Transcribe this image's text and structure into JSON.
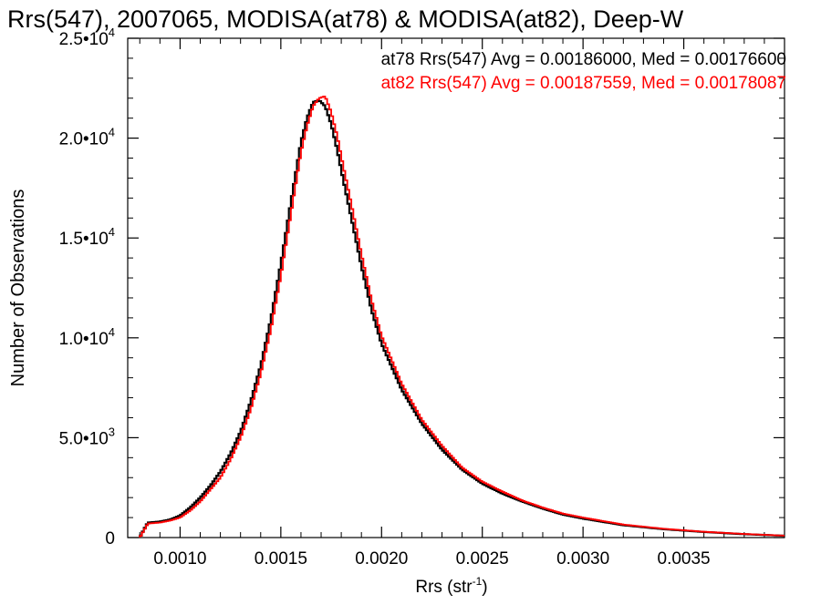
{
  "chart_data": {
    "type": "line",
    "title": "Rrs(547), 2007065, MODISA(at78) & MODISA(at82), Deep-W",
    "xlabel": "Rrs (str",
    "xlabel_sup": "-1",
    "xlabel_end": ")",
    "ylabel": "Number of Observations",
    "xlim": [
      0.00074,
      0.004
    ],
    "ylim": [
      0,
      25000
    ],
    "x_ticks": [
      {
        "value": 0.001,
        "label": "0.0010"
      },
      {
        "value": 0.0015,
        "label": "0.0015"
      },
      {
        "value": 0.002,
        "label": "0.0020"
      },
      {
        "value": 0.0025,
        "label": "0.0025"
      },
      {
        "value": 0.003,
        "label": "0.0030"
      },
      {
        "value": 0.0035,
        "label": "0.0035"
      }
    ],
    "y_ticks": [
      {
        "value": 0,
        "mant": "0",
        "exp": ""
      },
      {
        "value": 5000,
        "mant": "5.0•10",
        "exp": "3"
      },
      {
        "value": 10000,
        "mant": "1.0•10",
        "exp": "4"
      },
      {
        "value": 15000,
        "mant": "1.5•10",
        "exp": "4"
      },
      {
        "value": 20000,
        "mant": "2.0•10",
        "exp": "4"
      },
      {
        "value": 25000,
        "mant": "2.5•10",
        "exp": "4"
      }
    ],
    "annotations": [
      "at78 Rrs(547) Avg = 0.00186000, Med = 0.00176600",
      "at82 Rrs(547) Avg = 0.00187559, Med = 0.00178087"
    ],
    "grid": false,
    "series": [
      {
        "name": "at78",
        "color": "#000000",
        "x": [
          0.00074,
          0.0008,
          0.00082,
          0.00084,
          0.0009,
          0.00095,
          0.001,
          0.00105,
          0.0011,
          0.00115,
          0.0012,
          0.00125,
          0.0013,
          0.00135,
          0.0014,
          0.00145,
          0.0015,
          0.00155,
          0.0016,
          0.00163,
          0.00166,
          0.00169,
          0.00172,
          0.00175,
          0.00178,
          0.00181,
          0.00185,
          0.0019,
          0.00195,
          0.002,
          0.0021,
          0.0022,
          0.0023,
          0.0024,
          0.0025,
          0.0026,
          0.0027,
          0.0028,
          0.0029,
          0.003,
          0.0032,
          0.0034,
          0.0036,
          0.0038,
          0.004
        ],
        "y": [
          0,
          0,
          400,
          750,
          800,
          900,
          1100,
          1500,
          2000,
          2600,
          3300,
          4200,
          5300,
          6800,
          8600,
          10900,
          13700,
          16800,
          19800,
          21000,
          21800,
          21900,
          21600,
          20700,
          19400,
          17900,
          16000,
          13600,
          11400,
          9700,
          7400,
          5700,
          4400,
          3400,
          2700,
          2200,
          1800,
          1450,
          1150,
          950,
          620,
          420,
          280,
          170,
          90
        ]
      },
      {
        "name": "at82",
        "color": "#ff0000",
        "x": [
          0.00074,
          0.0008,
          0.00082,
          0.00084,
          0.0009,
          0.00095,
          0.001,
          0.00105,
          0.0011,
          0.00115,
          0.0012,
          0.00125,
          0.0013,
          0.00135,
          0.0014,
          0.00145,
          0.0015,
          0.00155,
          0.0016,
          0.00163,
          0.00166,
          0.00169,
          0.00172,
          0.00175,
          0.00178,
          0.00181,
          0.00185,
          0.0019,
          0.00195,
          0.002,
          0.0021,
          0.0022,
          0.0023,
          0.0024,
          0.0025,
          0.0026,
          0.0027,
          0.0028,
          0.0029,
          0.003,
          0.0032,
          0.0034,
          0.0036,
          0.0038,
          0.004
        ],
        "y": [
          0,
          0,
          350,
          700,
          750,
          850,
          1000,
          1350,
          1800,
          2400,
          3000,
          3900,
          5000,
          6400,
          8200,
          10400,
          13100,
          16200,
          19300,
          20600,
          21600,
          22000,
          22100,
          21300,
          20100,
          18600,
          16700,
          14200,
          11900,
          10100,
          7700,
          5900,
          4600,
          3500,
          2800,
          2300,
          1850,
          1500,
          1200,
          1000,
          650,
          440,
          290,
          180,
          95
        ]
      }
    ]
  }
}
